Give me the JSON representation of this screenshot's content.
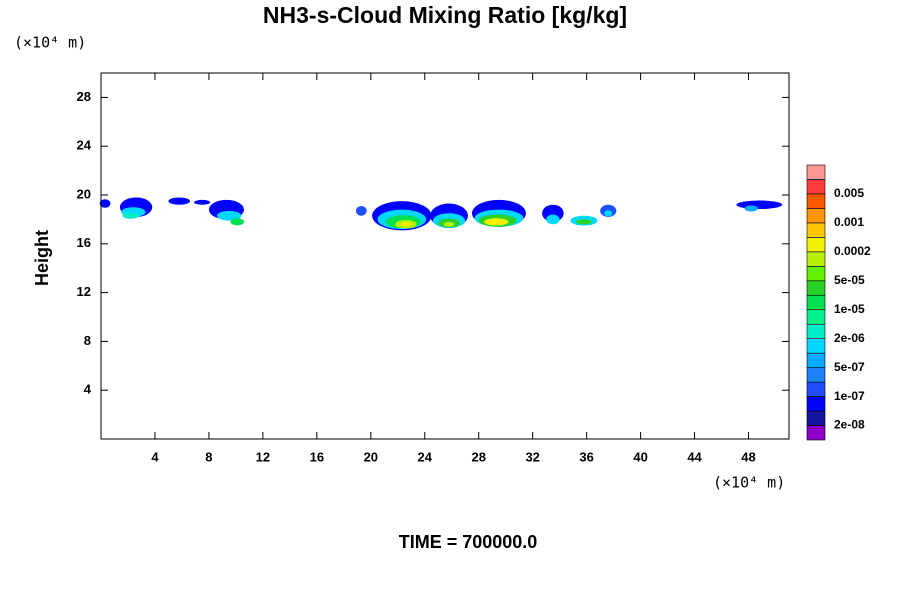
{
  "chart_data": {
    "type": "contour",
    "title": "NH3-s-Cloud Mixing Ratio [kg/kg]",
    "y_unit": "(×10⁴ m)",
    "x_unit": "(×10⁴ m)",
    "ylabel": "Height",
    "footer": "TIME = 700000.0",
    "xlim": [
      0,
      51
    ],
    "ylim": [
      0,
      30
    ],
    "xticks": [
      4,
      8,
      12,
      16,
      20,
      24,
      28,
      32,
      36,
      40,
      44,
      48
    ],
    "yticks": [
      4,
      8,
      12,
      16,
      20,
      24,
      28
    ],
    "colorbar": {
      "colors": [
        "#8c00c8",
        "#1414a0",
        "#0000ff",
        "#1e50ff",
        "#1e82ff",
        "#00aaff",
        "#00d8ff",
        "#00ecc8",
        "#00f08c",
        "#00e050",
        "#28d228",
        "#64f000",
        "#b4f000",
        "#f0f000",
        "#ffc800",
        "#ff9600",
        "#ff5a00",
        "#ff3c3c",
        "#ff9696"
      ],
      "labels": [
        "2e-08",
        "1e-07",
        "5e-07",
        "2e-06",
        "1e-05",
        "5e-05",
        "0.0002",
        "0.001",
        "0.005"
      ]
    },
    "cells": [
      {
        "x": 0.3,
        "y": 19.3,
        "rx": 0.4,
        "ry": 0.35,
        "level": 2
      },
      {
        "x": 2.6,
        "y": 19.0,
        "rx": 1.2,
        "ry": 0.8,
        "level": 2
      },
      {
        "x": 2.4,
        "y": 18.6,
        "rx": 0.9,
        "ry": 0.4,
        "level": 6
      },
      {
        "x": 2.2,
        "y": 18.3,
        "rx": 0.6,
        "ry": 0.25,
        "level": 7
      },
      {
        "x": 5.8,
        "y": 19.5,
        "rx": 0.8,
        "ry": 0.3,
        "level": 2
      },
      {
        "x": 7.5,
        "y": 19.4,
        "rx": 0.6,
        "ry": 0.2,
        "level": 2
      },
      {
        "x": 9.3,
        "y": 18.8,
        "rx": 1.3,
        "ry": 0.8,
        "level": 2
      },
      {
        "x": 9.5,
        "y": 18.3,
        "rx": 0.9,
        "ry": 0.4,
        "level": 6
      },
      {
        "x": 10.1,
        "y": 17.8,
        "rx": 0.5,
        "ry": 0.3,
        "level": 9
      },
      {
        "x": 19.3,
        "y": 18.7,
        "rx": 0.4,
        "ry": 0.4,
        "level": 3
      },
      {
        "x": 22.3,
        "y": 18.3,
        "rx": 2.2,
        "ry": 1.2,
        "level": 2
      },
      {
        "x": 22.3,
        "y": 18.0,
        "rx": 1.8,
        "ry": 0.8,
        "level": 6
      },
      {
        "x": 22.4,
        "y": 17.8,
        "rx": 1.3,
        "ry": 0.55,
        "level": 9
      },
      {
        "x": 22.6,
        "y": 17.6,
        "rx": 0.8,
        "ry": 0.35,
        "level": 12
      },
      {
        "x": 22.6,
        "y": 17.6,
        "rx": 0.4,
        "ry": 0.2,
        "level": 13
      },
      {
        "x": 25.8,
        "y": 18.3,
        "rx": 1.4,
        "ry": 1.0,
        "level": 2
      },
      {
        "x": 25.8,
        "y": 17.9,
        "rx": 1.2,
        "ry": 0.6,
        "level": 6
      },
      {
        "x": 25.8,
        "y": 17.7,
        "rx": 0.8,
        "ry": 0.35,
        "level": 10
      },
      {
        "x": 25.8,
        "y": 17.6,
        "rx": 0.4,
        "ry": 0.2,
        "level": 12
      },
      {
        "x": 29.5,
        "y": 18.5,
        "rx": 2.0,
        "ry": 1.1,
        "level": 2
      },
      {
        "x": 29.5,
        "y": 18.1,
        "rx": 1.8,
        "ry": 0.7,
        "level": 6
      },
      {
        "x": 29.4,
        "y": 17.9,
        "rx": 1.4,
        "ry": 0.5,
        "level": 10
      },
      {
        "x": 29.3,
        "y": 17.8,
        "rx": 0.9,
        "ry": 0.3,
        "level": 13
      },
      {
        "x": 33.5,
        "y": 18.5,
        "rx": 0.8,
        "ry": 0.7,
        "level": 2
      },
      {
        "x": 33.5,
        "y": 18.0,
        "rx": 0.5,
        "ry": 0.4,
        "level": 6
      },
      {
        "x": 35.8,
        "y": 17.9,
        "rx": 1.0,
        "ry": 0.4,
        "level": 6
      },
      {
        "x": 35.8,
        "y": 17.8,
        "rx": 0.6,
        "ry": 0.2,
        "level": 10
      },
      {
        "x": 37.6,
        "y": 18.7,
        "rx": 0.6,
        "ry": 0.5,
        "level": 3
      },
      {
        "x": 37.6,
        "y": 18.5,
        "rx": 0.3,
        "ry": 0.25,
        "level": 6
      },
      {
        "x": 48.8,
        "y": 19.2,
        "rx": 1.7,
        "ry": 0.35,
        "level": 2
      },
      {
        "x": 48.2,
        "y": 18.9,
        "rx": 0.5,
        "ry": 0.25,
        "level": 5
      }
    ]
  }
}
